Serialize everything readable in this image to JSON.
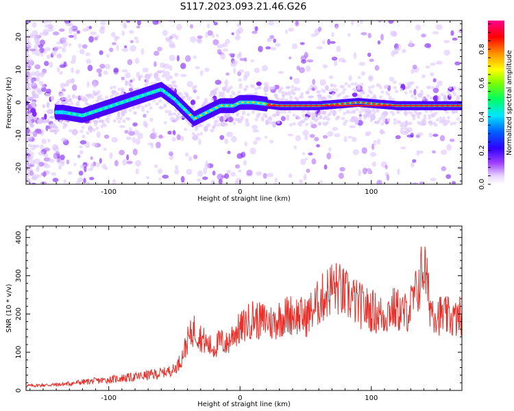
{
  "title": "S117.2023.093.21.46.G26",
  "chart_data": [
    {
      "type": "heatmap",
      "xlabel": "Height of straight line (km)",
      "ylabel": "Frequency (Hz)",
      "xlim": [
        -163,
        169
      ],
      "ylim": [
        -25,
        25
      ],
      "x_ticks": [
        -100,
        0,
        100
      ],
      "y_ticks": [
        -20,
        -10,
        0,
        10,
        20
      ],
      "colorbar": {
        "label": "Normalized spectral amplitude",
        "range": [
          0,
          0.97
        ],
        "ticks": [
          "0.0",
          "0.2",
          "0.4",
          "0.6",
          "0.8"
        ],
        "colors": [
          "#ffffff",
          "#e0c8ff",
          "#9b30ff",
          "#3000ff",
          "#0040ff",
          "#00e5ff",
          "#00ff40",
          "#ffff00",
          "#ff8000",
          "#ff0000",
          "#ff0080"
        ]
      },
      "ridge": {
        "description_points_x": [
          -135,
          -120,
          -105,
          -90,
          -75,
          -60,
          -50,
          -35,
          -25,
          -15,
          -5,
          0,
          10,
          30,
          60,
          90,
          120,
          150,
          169
        ],
        "description_points_y": [
          -3,
          -4,
          -2,
          0,
          2,
          4,
          1,
          -5,
          -3,
          -1,
          -1,
          0,
          0,
          -1,
          -1,
          0,
          -1,
          -1,
          -1
        ]
      }
    },
    {
      "type": "line",
      "xlabel": "Height of straight line (km)",
      "ylabel": "SNR (10 * v/v)",
      "xlim": [
        -163,
        169
      ],
      "ylim": [
        0,
        430
      ],
      "x_ticks": [
        -100,
        0,
        100
      ],
      "y_ticks": [
        0,
        100,
        200,
        300,
        400
      ],
      "color": "#e8302a",
      "x": [
        -163,
        -150,
        -140,
        -130,
        -120,
        -110,
        -100,
        -90,
        -80,
        -70,
        -60,
        -50,
        -45,
        -40,
        -35,
        -30,
        -25,
        -20,
        -15,
        -10,
        -5,
        0,
        5,
        10,
        15,
        20,
        25,
        30,
        40,
        50,
        55,
        60,
        65,
        70,
        75,
        80,
        85,
        90,
        95,
        100,
        105,
        110,
        115,
        120,
        125,
        130,
        135,
        140,
        145,
        150,
        155,
        160,
        165,
        169
      ],
      "values": [
        12,
        14,
        15,
        18,
        22,
        25,
        28,
        32,
        35,
        40,
        45,
        55,
        80,
        130,
        160,
        140,
        120,
        110,
        130,
        120,
        150,
        160,
        175,
        190,
        180,
        185,
        175,
        190,
        200,
        190,
        210,
        230,
        250,
        270,
        265,
        250,
        240,
        225,
        215,
        210,
        200,
        195,
        215,
        210,
        200,
        220,
        260,
        330,
        220,
        200,
        195,
        190,
        185,
        200
      ]
    }
  ]
}
